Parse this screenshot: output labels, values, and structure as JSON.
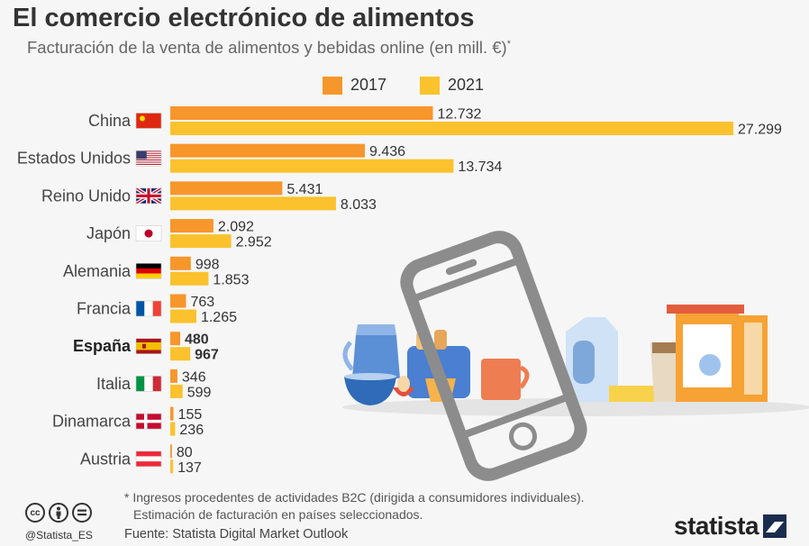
{
  "header": {
    "title": "El comercio electrónico de alimentos",
    "subtitle": "Facturación de la venta de alimentos y bebidas online (en mill. €)",
    "subtitle_mark": "*"
  },
  "chart_data": {
    "type": "bar",
    "orientation": "horizontal",
    "title": "El comercio electrónico de alimentos",
    "subtitle": "Facturación de la venta de alimentos y bebidas online (en mill. €)*",
    "xlabel": "",
    "ylabel": "",
    "categories": [
      "China",
      "Estados Unidos",
      "Reino Unido",
      "Japón",
      "Alemania",
      "Francia",
      "España",
      "Italia",
      "Dinamarca",
      "Austria"
    ],
    "highlight_category": "España",
    "series": [
      {
        "name": "2017",
        "color": "#f7962b",
        "values": [
          12732,
          9436,
          5431,
          2092,
          998,
          763,
          480,
          346,
          155,
          80
        ],
        "labels": [
          "12.732",
          "9.436",
          "5.431",
          "2.092",
          "998",
          "763",
          "480",
          "346",
          "155",
          "80"
        ]
      },
      {
        "name": "2021",
        "color": "#fbc22e",
        "values": [
          27299,
          13734,
          8033,
          2952,
          1853,
          1265,
          967,
          599,
          236,
          137
        ],
        "labels": [
          "27.299",
          "13.734",
          "8.033",
          "2.952",
          "1.853",
          "1.265",
          "967",
          "599",
          "236",
          "137"
        ]
      }
    ],
    "xlim": [
      0,
      27299
    ],
    "grid": false,
    "legend_position": "top"
  },
  "flags": [
    "china-flag",
    "usa-flag",
    "uk-flag",
    "japan-flag",
    "germany-flag",
    "france-flag",
    "spain-flag",
    "italy-flag",
    "denmark-flag",
    "austria-flag"
  ],
  "footer": {
    "footnote_line1": "* Ingresos procedentes de actividades B2C (dirigida a consumidores individuales).",
    "footnote_line2": "Estimación de facturación en países seleccionados.",
    "source": "Fuente: Statista Digital Market Outlook",
    "handle": "@Statista_ES",
    "brand": "statista",
    "cc_icons": [
      "cc-icon",
      "by-icon",
      "nd-icon"
    ]
  }
}
